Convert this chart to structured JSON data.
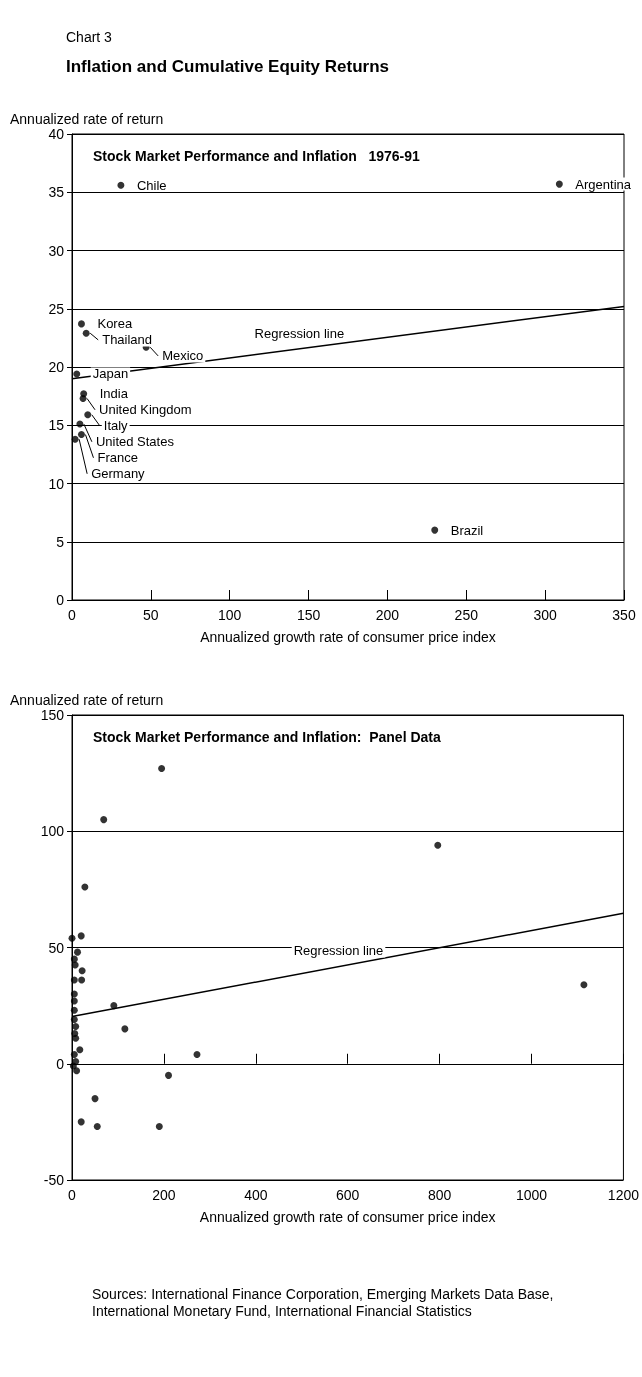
{
  "chart_data": [
    {
      "type": "scatter",
      "title": "Stock Market Performance and Inflation   1976-91",
      "xlabel": "Annualized growth rate of consumer price index",
      "ylabel": "Annualized rate of return",
      "annotations": [
        "Chart 3",
        "Inflation and Cumulative Equity Returns",
        {
          "text": "Chile",
          "x": 31,
          "y": 35.6
        },
        {
          "text": "Argentina",
          "x": 309,
          "y": 35.7
        },
        {
          "text": "Korea",
          "x": 6,
          "y": 23.7
        },
        {
          "text": "Thailand",
          "x": 9,
          "y": 22.9
        },
        {
          "text": "Mexico",
          "x": 47,
          "y": 21.7
        },
        {
          "text": "Japan",
          "x": 3,
          "y": 19.4
        },
        {
          "text": "India",
          "x": 7.4,
          "y": 17.7
        },
        {
          "text": "United Kingdom",
          "x": 7,
          "y": 17.3
        },
        {
          "text": "Italy",
          "x": 10,
          "y": 15.9
        },
        {
          "text": "United States",
          "x": 5,
          "y": 15.1
        },
        {
          "text": "France",
          "x": 6,
          "y": 14.2
        },
        {
          "text": "Germany",
          "x": 2,
          "y": 13.8
        },
        {
          "text": "Brazil",
          "x": 230,
          "y": 6
        },
        {
          "text": "Regression line",
          "x": 150,
          "y": 21.7
        }
      ],
      "series": [
        {
          "type": "scatter",
          "color": "#000000",
          "x": [
            31,
            309,
            6,
            9,
            47,
            3,
            7.4,
            7,
            10,
            5,
            6,
            2,
            230
          ],
          "values": [
            35.6,
            35.7,
            23.7,
            22.9,
            21.7,
            19.4,
            17.7,
            17.3,
            15.9,
            15.1,
            14.2,
            13.8,
            6
          ]
        },
        {
          "type": "line",
          "color": "#000000",
          "marker": "none",
          "x": [
            0,
            350
          ],
          "values": [
            19,
            25.2
          ]
        }
      ],
      "xlim": [
        0,
        350
      ],
      "xticks": [
        0,
        50,
        100,
        150,
        200,
        250,
        300,
        350
      ],
      "ylim": [
        0,
        40
      ],
      "yticks": [
        0,
        5,
        10,
        15,
        20,
        25,
        30,
        35,
        40
      ],
      "grid": "y",
      "marker": "circle",
      "line_style": "solid"
    },
    {
      "type": "scatter",
      "title": "Stock Market Performance and Inflation:  Panel Data",
      "xlabel": "Annualized growth rate of consumer price index",
      "ylabel": "Annualized rate of return",
      "annotations": [
        {
          "text": "Regression line",
          "x": 600,
          "y": 42.5
        },
        "Sources: International Finance Corporation, Emerging Markets Data Base, International Monetary Fund, International Financial Statistics"
      ],
      "series": [
        {
          "type": "scatter",
          "color": "#000000",
          "x": [
            195,
            69,
            796,
            28,
            0,
            20,
            12,
            5,
            7,
            22,
            21,
            5,
            5,
            5,
            5,
            91,
            115,
            272,
            1114,
            5,
            8,
            6,
            8,
            17,
            5,
            8,
            3,
            10,
            210,
            50,
            20,
            55,
            190
          ],
          "values": [
            127,
            105,
            94,
            76,
            54,
            55,
            48,
            45,
            42.5,
            40,
            36,
            36,
            30,
            27,
            23,
            25,
            15,
            4,
            34,
            19,
            16,
            13,
            11,
            6,
            4,
            1,
            -1,
            -3,
            -5,
            -15,
            -25,
            -27,
            -27
          ]
        },
        {
          "type": "line",
          "color": "#000000",
          "marker": "none",
          "x": [
            0,
            1200
          ],
          "values": [
            20.3,
            64.7
          ]
        }
      ],
      "xlim": [
        0,
        1200
      ],
      "xticks": [
        0,
        200,
        400,
        600,
        800,
        1000,
        1200
      ],
      "ylim": [
        -50,
        150
      ],
      "yticks": [
        -50,
        0,
        50,
        100,
        150
      ],
      "grid": "y",
      "marker": "circle",
      "line_style": "solid"
    }
  ]
}
